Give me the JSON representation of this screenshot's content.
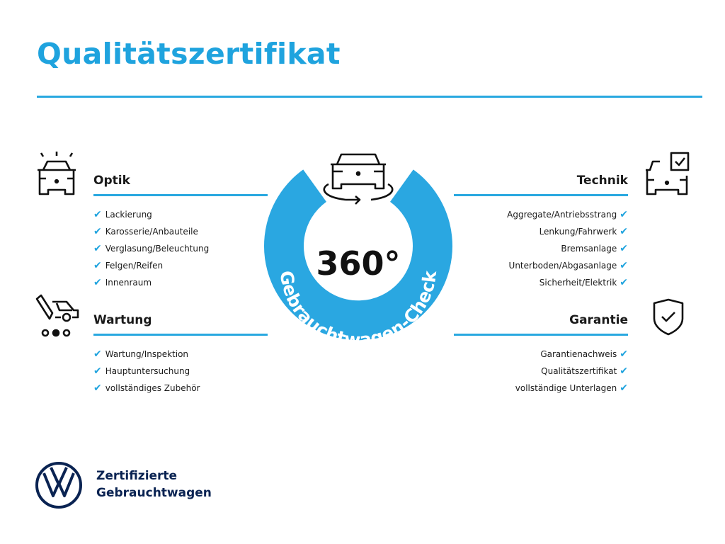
{
  "header": {
    "title": "Qualitätszertifikat"
  },
  "colors": {
    "accent": "#1fa3de",
    "brand_navy": "#0a2352",
    "text": "#1a1a1a"
  },
  "center": {
    "value": "360°",
    "label": "Gebrauchtwagen-Check",
    "icon": "car-rotate-icon"
  },
  "sections": {
    "optik": {
      "title": "Optik",
      "icon": "car-lights-icon",
      "items": [
        "Lackierung",
        "Karosserie/Anbauteile",
        "Verglasung/Beleuchtung",
        "Felgen/Reifen",
        "Innenraum"
      ]
    },
    "wartung": {
      "title": "Wartung",
      "icon": "service-car-icon",
      "items": [
        "Wartung/Inspektion",
        "Hauptuntersuchung",
        "vollständiges Zubehör"
      ]
    },
    "technik": {
      "title": "Technik",
      "icon": "car-checkbox-icon",
      "items": [
        "Aggregate/Antriebsstrang",
        "Lenkung/Fahrwerk",
        "Bremsanlage",
        "Unterboden/Abgasanlage",
        "Sicherheit/Elektrik"
      ]
    },
    "garantie": {
      "title": "Garantie",
      "icon": "shield-check-icon",
      "items": [
        "Garantienachweis",
        "Qualitätszertifikat",
        "vollständige Unterlagen"
      ]
    }
  },
  "check_glyph": "✔",
  "footer": {
    "line1": "Zertifizierte",
    "line2": "Gebrauchtwagen",
    "logo": "vw-logo"
  }
}
